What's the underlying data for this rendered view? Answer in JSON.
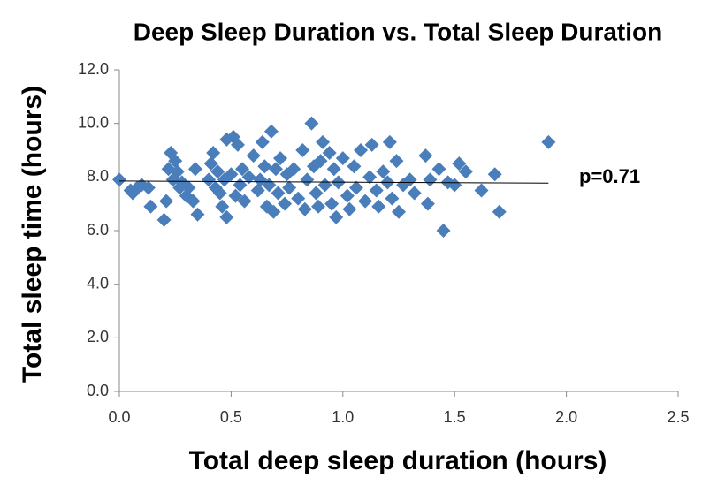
{
  "chart_data": {
    "type": "scatter",
    "title": "Deep Sleep Duration vs. Total Sleep Duration",
    "xlabel": "Total deep sleep duration (hours)",
    "ylabel": "Total sleep time (hours)",
    "annotation": "p=0.71",
    "color": "#4a7ebb",
    "x": [
      0.0,
      0.05,
      0.06,
      0.08,
      0.1,
      0.13,
      0.14,
      0.2,
      0.21,
      0.22,
      0.23,
      0.24,
      0.25,
      0.26,
      0.27,
      0.28,
      0.3,
      0.31,
      0.33,
      0.34,
      0.35,
      0.4,
      0.41,
      0.42,
      0.43,
      0.44,
      0.45,
      0.46,
      0.47,
      0.48,
      0.48,
      0.5,
      0.51,
      0.52,
      0.53,
      0.54,
      0.55,
      0.56,
      0.58,
      0.6,
      0.62,
      0.63,
      0.64,
      0.65,
      0.66,
      0.67,
      0.68,
      0.69,
      0.7,
      0.71,
      0.72,
      0.74,
      0.75,
      0.76,
      0.78,
      0.8,
      0.82,
      0.83,
      0.84,
      0.86,
      0.87,
      0.88,
      0.89,
      0.9,
      0.91,
      0.92,
      0.94,
      0.95,
      0.96,
      0.97,
      0.98,
      1.0,
      1.02,
      1.03,
      1.05,
      1.06,
      1.08,
      1.1,
      1.12,
      1.13,
      1.15,
      1.16,
      1.18,
      1.2,
      1.21,
      1.22,
      1.24,
      1.25,
      1.27,
      1.3,
      1.32,
      1.37,
      1.38,
      1.39,
      1.43,
      1.45,
      1.47,
      1.5,
      1.52,
      1.55,
      1.62,
      1.68,
      1.7,
      1.92
    ],
    "y": [
      7.9,
      7.5,
      7.4,
      7.6,
      7.7,
      7.6,
      6.9,
      6.4,
      7.1,
      8.3,
      8.9,
      7.9,
      8.6,
      8.2,
      7.6,
      7.8,
      7.3,
      7.6,
      7.1,
      8.3,
      6.6,
      7.9,
      8.5,
      8.9,
      7.6,
      8.2,
      7.4,
      6.9,
      7.9,
      9.4,
      6.5,
      8.1,
      9.5,
      7.3,
      9.2,
      7.7,
      8.3,
      7.1,
      8.0,
      8.8,
      7.5,
      7.9,
      9.3,
      8.4,
      6.9,
      7.7,
      9.7,
      6.7,
      8.3,
      7.4,
      8.7,
      7.0,
      8.1,
      7.6,
      8.3,
      7.2,
      9.0,
      6.8,
      7.9,
      10.0,
      8.4,
      7.4,
      6.9,
      8.6,
      9.3,
      7.7,
      8.9,
      7.0,
      8.3,
      6.5,
      7.8,
      8.7,
      7.3,
      6.8,
      8.4,
      7.6,
      9.0,
      7.1,
      8.0,
      9.2,
      7.5,
      6.9,
      8.2,
      7.8,
      9.3,
      7.2,
      8.6,
      6.7,
      7.7,
      7.9,
      7.4,
      8.8,
      7.0,
      7.9,
      8.3,
      6.0,
      7.8,
      7.7,
      8.5,
      8.2,
      7.5,
      8.1,
      6.7,
      9.3
    ],
    "trendline": {
      "x": [
        0,
        1.92
      ],
      "y": [
        7.85,
        7.77
      ]
    },
    "xlim": [
      0,
      2.5
    ],
    "xticks": [
      {
        "value": 0,
        "label": "0.0"
      },
      0.5,
      {
        "value": 1,
        "label": "1.0"
      },
      1.5,
      {
        "value": 2,
        "label": "2.0"
      },
      2.5
    ],
    "ylim": [
      0,
      12
    ],
    "yticks": [
      {
        "value": 0,
        "label": "0.0"
      },
      {
        "value": 2,
        "label": "2.0"
      },
      {
        "value": 4,
        "label": "4.0"
      },
      {
        "value": 6,
        "label": "6.0"
      },
      {
        "value": 8,
        "label": "8.0"
      },
      {
        "value": 10,
        "label": "10.0"
      },
      {
        "value": 12,
        "label": "12.0"
      }
    ]
  }
}
